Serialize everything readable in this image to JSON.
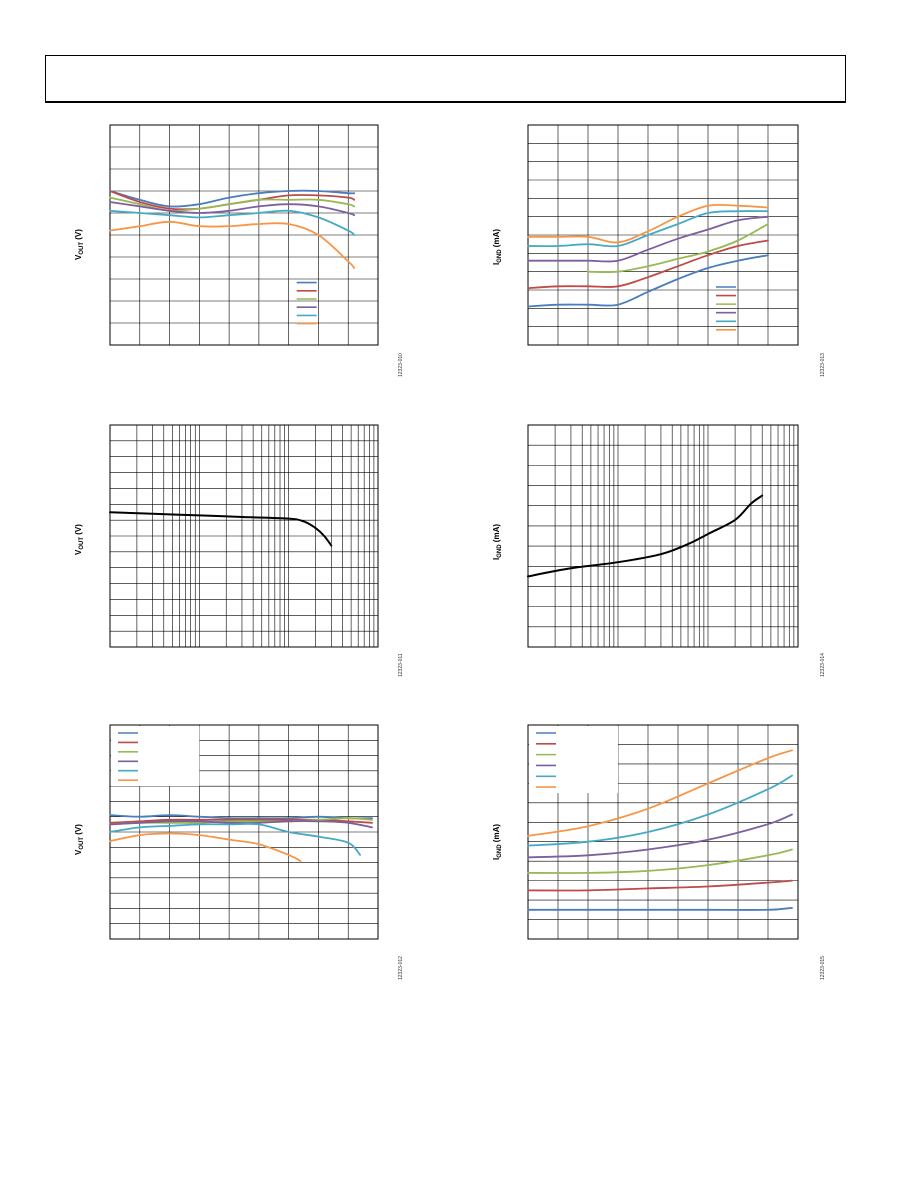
{
  "page": {
    "header_text": ""
  },
  "colors": {
    "blue": "#4a7ebb",
    "red": "#be4b48",
    "green": "#98b954",
    "purple": "#7d5fa0",
    "cyan": "#46aac5",
    "orange": "#f79646",
    "black": "#000000"
  },
  "chart_data": [
    {
      "id": "c1",
      "type": "line",
      "xscale": "linear",
      "ylabel": "V",
      "ysub": "OUT",
      "yunit": " (V)",
      "fig_id": "12323-010",
      "xlim": [
        0,
        9
      ],
      "ylim": [
        0,
        10
      ],
      "xticks": 9,
      "yticks": 10,
      "legend": {
        "position": "bottom-right",
        "box": [
          6,
          0.7,
          3,
          3.2
        ]
      },
      "series": [
        {
          "color": "blue",
          "x": [
            0,
            1,
            2,
            3,
            4,
            5,
            6,
            7,
            8,
            8.2
          ],
          "y": [
            7.0,
            6.6,
            6.3,
            6.4,
            6.7,
            6.9,
            7.0,
            7.0,
            6.9,
            6.9
          ]
        },
        {
          "color": "red",
          "x": [
            0,
            1,
            2,
            3,
            4,
            5,
            6,
            7,
            8,
            8.2
          ],
          "y": [
            7.0,
            6.5,
            6.2,
            6.2,
            6.4,
            6.6,
            6.8,
            6.8,
            6.7,
            6.6
          ]
        },
        {
          "color": "green",
          "x": [
            0,
            1,
            2,
            3,
            4,
            5,
            6,
            7,
            8,
            8.2
          ],
          "y": [
            6.7,
            6.4,
            6.1,
            6.2,
            6.4,
            6.6,
            6.6,
            6.6,
            6.4,
            6.3
          ]
        },
        {
          "color": "purple",
          "x": [
            0,
            1,
            2,
            3,
            4,
            5,
            6,
            7,
            8,
            8.2
          ],
          "y": [
            6.5,
            6.3,
            6.1,
            6.0,
            6.1,
            6.3,
            6.4,
            6.3,
            6.0,
            5.9
          ]
        },
        {
          "color": "cyan",
          "x": [
            0,
            1,
            2,
            3,
            4,
            5,
            6,
            7,
            8,
            8.2
          ],
          "y": [
            6.1,
            6.0,
            5.9,
            5.8,
            5.9,
            6.0,
            6.1,
            5.8,
            5.2,
            5.0
          ]
        },
        {
          "color": "orange",
          "x": [
            0,
            1,
            2,
            3,
            4,
            5,
            6,
            7,
            8,
            8.2
          ],
          "y": [
            5.2,
            5.4,
            5.6,
            5.4,
            5.4,
            5.5,
            5.5,
            5.0,
            3.8,
            3.5
          ]
        }
      ]
    },
    {
      "id": "c2",
      "type": "line",
      "xscale": "linear",
      "ylabel": "I",
      "ysub": "GND",
      "yunit": " (mA)",
      "fig_id": "12323-013",
      "xlim": [
        0,
        9
      ],
      "ylim": [
        0,
        12
      ],
      "xticks": 9,
      "yticks": 12,
      "legend": {
        "position": "bottom-right",
        "box": [
          6,
          0.5,
          3,
          3.6
        ]
      },
      "series": [
        {
          "color": "blue",
          "x": [
            0,
            1,
            2,
            3,
            4,
            5,
            6,
            7,
            8
          ],
          "y": [
            2.1,
            2.2,
            2.2,
            2.2,
            2.9,
            3.6,
            4.2,
            4.6,
            4.9
          ]
        },
        {
          "color": "red",
          "x": [
            0,
            1,
            2,
            3,
            4,
            5,
            6,
            7,
            8
          ],
          "y": [
            3.1,
            3.2,
            3.2,
            3.2,
            3.7,
            4.3,
            4.9,
            5.4,
            5.7
          ]
        },
        {
          "color": "green",
          "x": [
            2,
            3,
            4,
            5,
            6,
            7,
            8
          ],
          "y": [
            4.0,
            4.0,
            4.3,
            4.7,
            5.1,
            5.7,
            6.6
          ]
        },
        {
          "color": "purple",
          "x": [
            0,
            1,
            2,
            3,
            4,
            5,
            6,
            7,
            8
          ],
          "y": [
            4.6,
            4.6,
            4.6,
            4.6,
            5.2,
            5.8,
            6.3,
            6.8,
            7.0
          ]
        },
        {
          "color": "cyan",
          "x": [
            0,
            1,
            2,
            3,
            4,
            5,
            6,
            7,
            8
          ],
          "y": [
            5.4,
            5.4,
            5.5,
            5.4,
            6.0,
            6.6,
            7.2,
            7.3,
            7.3
          ]
        },
        {
          "color": "orange",
          "x": [
            0,
            1,
            2,
            3,
            4,
            5,
            6,
            7,
            8
          ],
          "y": [
            5.9,
            5.9,
            5.9,
            5.6,
            6.2,
            7.0,
            7.6,
            7.6,
            7.5
          ]
        }
      ]
    },
    {
      "id": "c3",
      "type": "line",
      "xscale": "log",
      "ylabel": "V",
      "ysub": "OUT",
      "yunit": " (V)",
      "fig_id": "12323-011",
      "xlim": [
        1,
        1000
      ],
      "ylim": [
        0,
        14
      ],
      "yticks": 14,
      "series": [
        {
          "color": "black",
          "x": [
            1,
            3,
            10,
            30,
            100,
            150,
            200,
            250,
            300
          ],
          "y": [
            8.5,
            8.4,
            8.3,
            8.2,
            8.1,
            7.9,
            7.5,
            7.0,
            6.4
          ]
        }
      ]
    },
    {
      "id": "c4",
      "type": "line",
      "xscale": "log",
      "ylabel": "I",
      "ysub": "GND",
      "yunit": " (mA)",
      "fig_id": "12323-014",
      "xlim": [
        1,
        1000
      ],
      "ylim": [
        0,
        11
      ],
      "yticks": 11,
      "series": [
        {
          "color": "black",
          "x": [
            1,
            3,
            10,
            30,
            60,
            100,
            200,
            300,
            400
          ],
          "y": [
            3.5,
            3.9,
            4.2,
            4.6,
            5.1,
            5.6,
            6.3,
            7.1,
            7.5
          ]
        }
      ]
    },
    {
      "id": "c5",
      "type": "line",
      "xscale": "linear",
      "ylabel": "V",
      "ysub": "OUT",
      "yunit": " (V)",
      "fig_id": "12323-012",
      "xlim": [
        0,
        9
      ],
      "ylim": [
        0,
        14
      ],
      "xticks": 9,
      "yticks": 14,
      "legend": {
        "position": "top-left",
        "box": [
          0,
          10,
          3,
          14
        ]
      },
      "series": [
        {
          "color": "blue",
          "x": [
            0,
            1,
            2,
            3,
            4,
            5,
            6,
            7,
            8,
            8.8
          ],
          "y": [
            8.1,
            8.0,
            8.1,
            8.0,
            7.9,
            7.9,
            7.9,
            8.0,
            7.9,
            7.9
          ]
        },
        {
          "color": "red",
          "x": [
            0,
            1,
            2,
            3,
            4,
            5,
            6,
            7,
            8,
            8.8
          ],
          "y": [
            7.6,
            7.7,
            7.8,
            7.8,
            7.8,
            7.8,
            7.8,
            7.8,
            7.7,
            7.6
          ]
        },
        {
          "color": "green",
          "x": [
            0,
            1,
            2,
            3,
            4,
            5,
            6,
            7,
            8,
            8.8
          ],
          "y": [
            7.5,
            7.6,
            7.6,
            7.6,
            7.7,
            7.7,
            7.7,
            7.8,
            7.9,
            7.8
          ]
        },
        {
          "color": "purple",
          "x": [
            0,
            1,
            2,
            3,
            4,
            5,
            6,
            7,
            8,
            8.8
          ],
          "y": [
            7.5,
            7.6,
            7.7,
            7.7,
            7.6,
            7.6,
            7.7,
            7.7,
            7.6,
            7.3
          ]
        },
        {
          "color": "cyan",
          "x": [
            0,
            1,
            2,
            3,
            4,
            5,
            6,
            7,
            8,
            8.4
          ],
          "y": [
            7.0,
            7.3,
            7.4,
            7.5,
            7.5,
            7.5,
            7.0,
            6.7,
            6.3,
            5.5
          ]
        },
        {
          "color": "orange",
          "x": [
            0,
            1,
            2,
            3,
            4,
            5,
            6,
            6.4
          ],
          "y": [
            6.4,
            6.8,
            6.9,
            6.8,
            6.5,
            6.2,
            5.5,
            5.1
          ]
        }
      ]
    },
    {
      "id": "c6",
      "type": "line",
      "xscale": "linear",
      "ylabel": "I",
      "ysub": "GND",
      "yunit": " (mA)",
      "fig_id": "12323-015",
      "xlim": [
        0,
        9
      ],
      "ylim": [
        0,
        11
      ],
      "xticks": 9,
      "yticks": 11,
      "legend": {
        "position": "top-left",
        "box": [
          0,
          7.5,
          3,
          11
        ]
      },
      "series": [
        {
          "color": "blue",
          "x": [
            0,
            2,
            4,
            6,
            8,
            8.8
          ],
          "y": [
            1.5,
            1.5,
            1.5,
            1.5,
            1.5,
            1.6
          ]
        },
        {
          "color": "red",
          "x": [
            0,
            2,
            4,
            6,
            8,
            8.8
          ],
          "y": [
            2.5,
            2.5,
            2.6,
            2.7,
            2.9,
            3.0
          ]
        },
        {
          "color": "green",
          "x": [
            0,
            2,
            4,
            6,
            8,
            8.8
          ],
          "y": [
            3.4,
            3.4,
            3.5,
            3.8,
            4.3,
            4.6
          ]
        },
        {
          "color": "purple",
          "x": [
            0,
            2,
            4,
            6,
            8,
            8.8
          ],
          "y": [
            4.2,
            4.3,
            4.6,
            5.1,
            5.9,
            6.4
          ]
        },
        {
          "color": "cyan",
          "x": [
            0,
            2,
            4,
            6,
            8,
            8.8
          ],
          "y": [
            4.8,
            5.0,
            5.5,
            6.4,
            7.7,
            8.4
          ]
        },
        {
          "color": "orange",
          "x": [
            0,
            2,
            4,
            6,
            8,
            8.8
          ],
          "y": [
            5.3,
            5.8,
            6.7,
            8.0,
            9.3,
            9.7
          ]
        }
      ]
    }
  ]
}
